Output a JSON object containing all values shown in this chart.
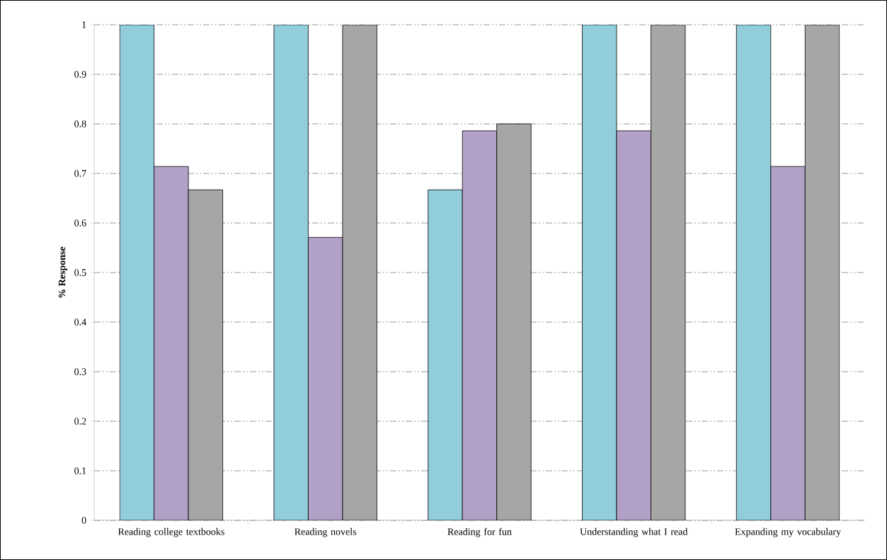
{
  "chart_data": {
    "type": "bar",
    "ylabel": "% Response",
    "categories": [
      "Reading college textbooks",
      "Reading novels",
      "Reading for fun",
      "Understanding what I read",
      "Expanding my vocabulary"
    ],
    "series": [
      {
        "color": "#92cddc",
        "values": [
          1,
          1,
          0.667,
          1,
          1
        ]
      },
      {
        "color": "#b2a1c7",
        "values": [
          0.714,
          0.571,
          0.786,
          0.786,
          0.714
        ]
      },
      {
        "color": "#a6a6a6",
        "values": [
          0.667,
          1,
          0.8,
          1,
          1
        ]
      }
    ],
    "ylim": [
      0,
      1
    ],
    "yticks": [
      0,
      0.1,
      0.2,
      0.3,
      0.4,
      0.5,
      0.6,
      0.7,
      0.8,
      0.9,
      1
    ],
    "grid": "y"
  }
}
